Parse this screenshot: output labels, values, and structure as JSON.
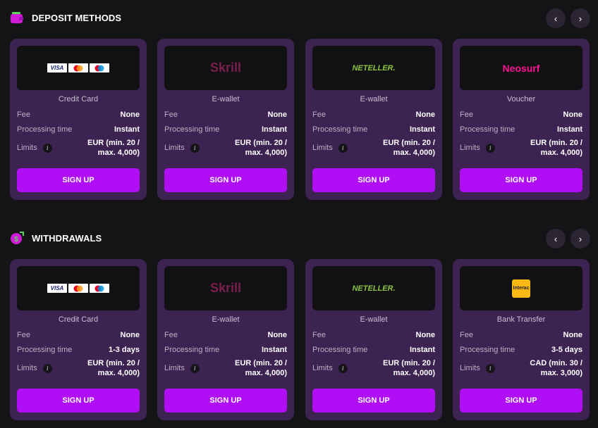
{
  "sections": [
    {
      "title": "DEPOSIT METHODS",
      "icon": "wallet-icon",
      "prev": "‹",
      "next": "›",
      "cards": [
        {
          "logo": "cards",
          "logo_text": [
            "VISA",
            "",
            ""
          ],
          "name": "Credit Card",
          "fee_label": "Fee",
          "fee": "None",
          "time_label": "Processing time",
          "time": "Instant",
          "limits_label": "Limits",
          "limits_1": "EUR (min. 20 /",
          "limits_2": "max. 4,000)",
          "button": "SIGN UP"
        },
        {
          "logo": "skrill",
          "logo_text": "Skrill",
          "name": "E-wallet",
          "fee_label": "Fee",
          "fee": "None",
          "time_label": "Processing time",
          "time": "Instant",
          "limits_label": "Limits",
          "limits_1": "EUR (min. 20 /",
          "limits_2": "max. 4,000)",
          "button": "SIGN UP"
        },
        {
          "logo": "neteller",
          "logo_text": "NETELLER.",
          "name": "E-wallet",
          "fee_label": "Fee",
          "fee": "None",
          "time_label": "Processing time",
          "time": "Instant",
          "limits_label": "Limits",
          "limits_1": "EUR (min. 20 /",
          "limits_2": "max. 4,000)",
          "button": "SIGN UP"
        },
        {
          "logo": "neosurf",
          "logo_text": "Neosurf",
          "name": "Voucher",
          "fee_label": "Fee",
          "fee": "None",
          "time_label": "Processing time",
          "time": "Instant",
          "limits_label": "Limits",
          "limits_1": "EUR (min. 20 /",
          "limits_2": "max. 4,000)",
          "button": "SIGN UP"
        }
      ]
    },
    {
      "title": "WITHDRAWALS",
      "icon": "money-bag-icon",
      "prev": "‹",
      "next": "›",
      "cards": [
        {
          "logo": "cards",
          "logo_text": [
            "VISA",
            "",
            ""
          ],
          "name": "Credit Card",
          "fee_label": "Fee",
          "fee": "None",
          "time_label": "Processing time",
          "time": "1-3 days",
          "limits_label": "Limits",
          "limits_1": "EUR (min. 20 /",
          "limits_2": "max. 4,000)",
          "button": "SIGN UP"
        },
        {
          "logo": "skrill",
          "logo_text": "Skrill",
          "name": "E-wallet",
          "fee_label": "Fee",
          "fee": "None",
          "time_label": "Processing time",
          "time": "Instant",
          "limits_label": "Limits",
          "limits_1": "EUR (min. 20 /",
          "limits_2": "max. 4,000)",
          "button": "SIGN UP"
        },
        {
          "logo": "neteller",
          "logo_text": "NETELLER.",
          "name": "E-wallet",
          "fee_label": "Fee",
          "fee": "None",
          "time_label": "Processing time",
          "time": "Instant",
          "limits_label": "Limits",
          "limits_1": "EUR (min. 20 /",
          "limits_2": "max. 4,000)",
          "button": "SIGN UP"
        },
        {
          "logo": "interac",
          "logo_text": "Interac",
          "name": "Bank Transfer",
          "fee_label": "Fee",
          "fee": "None",
          "time_label": "Processing time",
          "time": "3-5 days",
          "limits_label": "Limits",
          "limits_1": "CAD (min. 30 /",
          "limits_2": "max. 3,000)",
          "button": "SIGN UP"
        }
      ]
    }
  ],
  "colors": {
    "background": "#141417",
    "card": "#3d2352",
    "button": "#b00ff5"
  }
}
